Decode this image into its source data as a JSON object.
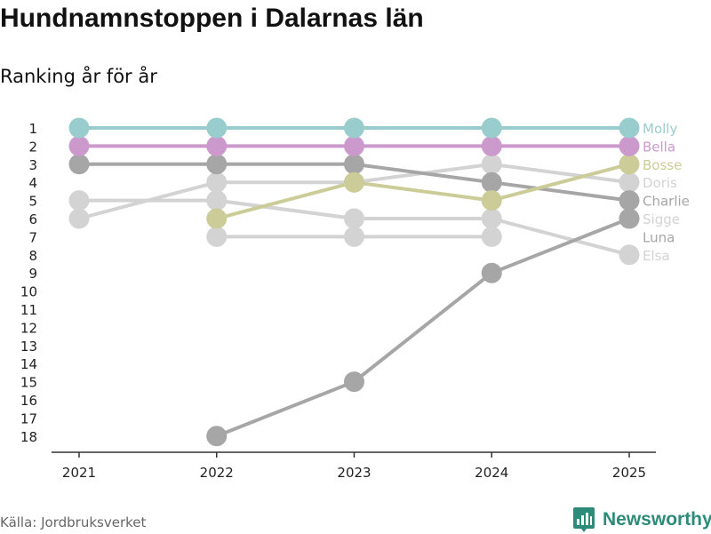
{
  "title": "Hundnamnstoppen i Dalarnas län",
  "subtitle": "Ranking år för år",
  "source": "Källa: Jordbruksverket",
  "brand": {
    "name": "Newsworthy",
    "color": "#2e8b7a"
  },
  "chart_data": {
    "type": "line",
    "title": "Hundnamnstoppen i Dalarnas län",
    "subtitle": "Ranking år för år",
    "xlabel": "",
    "ylabel": "",
    "x": [
      "2021",
      "2022",
      "2023",
      "2024",
      "2025"
    ],
    "y_ticks": [
      "1",
      "2",
      "3",
      "4",
      "5",
      "6",
      "7",
      "8",
      "9",
      "10",
      "11",
      "12",
      "13",
      "14",
      "15",
      "16",
      "17",
      "18"
    ],
    "ylim": [
      1,
      18
    ],
    "y_inverted": true,
    "grid": false,
    "legend": "right, direct labels at line ends",
    "series": [
      {
        "name": "Elsa",
        "color": "#d3d3d3",
        "values": [
          null,
          5,
          6,
          6,
          8
        ]
      },
      {
        "name": "Luna",
        "color": "#d3d3d3",
        "values": [
          null,
          7,
          7,
          7,
          null
        ]
      },
      {
        "name": "Doris",
        "color": "#d3d3d3",
        "values": [
          6,
          4,
          4,
          3,
          4
        ]
      },
      {
        "name": "Sigge",
        "color": "#d3d3d3",
        "values": [
          5,
          5,
          null,
          null,
          6
        ]
      },
      {
        "name": "Charlie",
        "color": "#a6a6a6",
        "values": [
          3,
          3,
          3,
          4,
          5
        ]
      },
      {
        "name": "Luna",
        "color": "#a6a6a6",
        "values": [
          null,
          18,
          15,
          9,
          6
        ]
      },
      {
        "name": "Bosse",
        "color": "#cccc99",
        "values": [
          null,
          6,
          4,
          5,
          3
        ]
      },
      {
        "name": "Bella",
        "color": "#cc99cc",
        "values": [
          2,
          2,
          2,
          2,
          2
        ]
      },
      {
        "name": "Molly",
        "color": "#99cccc",
        "values": [
          1,
          1,
          1,
          1,
          1
        ]
      }
    ],
    "end_labels": [
      {
        "name": "Molly",
        "rank": 1,
        "color": "#99cccc"
      },
      {
        "name": "Bella",
        "rank": 2,
        "color": "#cc99cc"
      },
      {
        "name": "Bosse",
        "rank": 3,
        "color": "#cccc99"
      },
      {
        "name": "Doris",
        "rank": 4,
        "color": "#d3d3d3"
      },
      {
        "name": "Charlie",
        "rank": 5,
        "color": "#a6a6a6"
      },
      {
        "name": "Sigge",
        "rank": 6,
        "color": "#d3d3d3"
      },
      {
        "name": "Luna",
        "rank": 7,
        "color": "#a6a6a6"
      },
      {
        "name": "Elsa",
        "rank": 8,
        "color": "#d3d3d3"
      }
    ]
  }
}
